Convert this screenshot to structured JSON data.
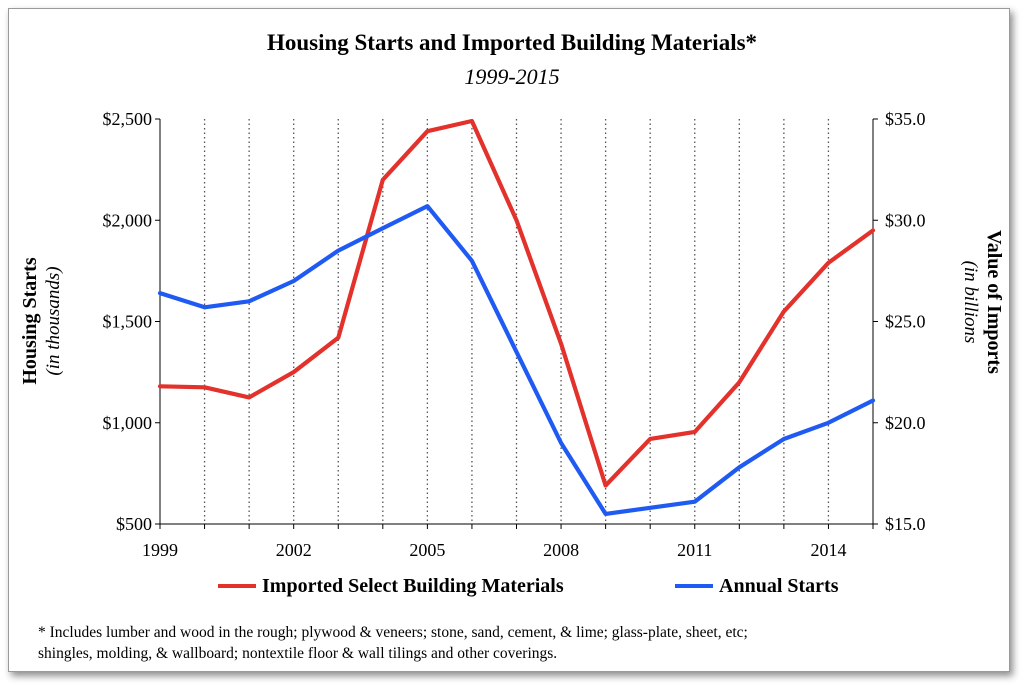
{
  "title": "Housing Starts and Imported Building Materials*",
  "subtitle": "1999-2015",
  "left_axis": {
    "label": "Housing Starts",
    "sublabel": "(in thousands)"
  },
  "right_axis": {
    "label": "Value of Imports",
    "sublabel": "(in billions"
  },
  "footnote": "* Includes lumber and wood in the rough; plywood & veneers; stone, sand, cement, & lime; glass-plate, sheet, etc; shingles, molding, & wallboard; nontextile floor & wall tilings and other coverings.",
  "colors": {
    "imports": "#e3312b",
    "starts": "#1f5bf2"
  },
  "chart_data": {
    "type": "line",
    "x": [
      1999,
      2000,
      2001,
      2002,
      2003,
      2004,
      2005,
      2006,
      2007,
      2008,
      2009,
      2010,
      2011,
      2012,
      2013,
      2014,
      2015
    ],
    "xlim": [
      1999,
      2015
    ],
    "x_ticks": [
      "1999",
      "2002",
      "2005",
      "2008",
      "2011",
      "2014"
    ],
    "y_left": {
      "lim": [
        500,
        2500
      ],
      "ticks": [
        "$500",
        "$1,000",
        "$1,500",
        "$2,000",
        "$2,500"
      ]
    },
    "y_right": {
      "lim": [
        15.0,
        35.0
      ],
      "ticks": [
        "$15.0",
        "$20.0",
        "$25.0",
        "$30.0",
        "$35.0"
      ]
    },
    "grid": "vertical dotted lines at each year",
    "legend_position": "bottom",
    "series": [
      {
        "name": "Imported Select Building Materials",
        "axis": "left",
        "values": [
          1180,
          1175,
          1125,
          1250,
          1420,
          2200,
          2440,
          2490,
          2000,
          1390,
          690,
          920,
          955,
          1200,
          1550,
          1790,
          1950
        ]
      },
      {
        "name": "Annual Starts",
        "axis": "right",
        "values": [
          26.4,
          25.7,
          26.0,
          27.0,
          28.5,
          29.6,
          30.7,
          28.0,
          23.5,
          19.0,
          15.5,
          15.8,
          16.1,
          17.8,
          19.2,
          20.0,
          21.1
        ]
      }
    ]
  }
}
